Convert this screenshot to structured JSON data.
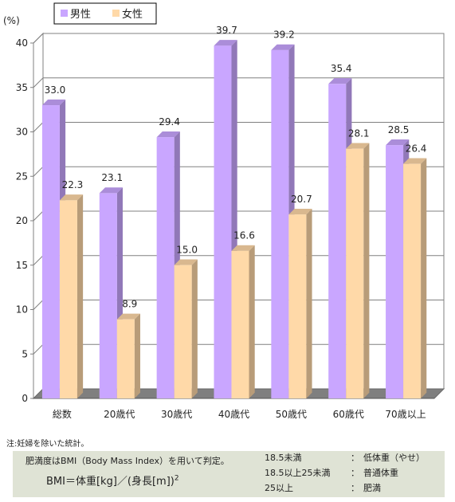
{
  "chart_data": {
    "type": "bar",
    "unit_label": "(%)",
    "categories": [
      "総数",
      "20歳代",
      "30歳代",
      "40歳代",
      "50歳代",
      "60歳代",
      "70歳以上"
    ],
    "series": [
      {
        "name": "男性",
        "color": "#c9a6ff",
        "values": [
          33.0,
          23.1,
          29.4,
          39.7,
          39.2,
          35.4,
          28.5
        ]
      },
      {
        "name": "女性",
        "color": "#ffd9a8",
        "values": [
          22.3,
          8.9,
          15.0,
          16.6,
          20.7,
          28.1,
          26.4
        ]
      }
    ],
    "value_labels": {
      "男性": [
        "33.0",
        "23.1",
        "29.4",
        "39.7",
        "39.2",
        "35.4",
        "28.5"
      ],
      "女性": [
        "22.3",
        "8.9",
        "15.0",
        "16.6",
        "20.7",
        "28.1",
        "26.4"
      ]
    },
    "ylim": [
      0,
      40
    ],
    "yticks": [
      0,
      5,
      10,
      15,
      20,
      25,
      30,
      35,
      40
    ],
    "grid": true,
    "style": "3d",
    "legend_position": "top-left"
  },
  "note": "注:妊婦を除いた統計。",
  "bmi": {
    "description": "肥満度はBMI（Body Mass Index）を用いて判定。",
    "formula": "BMI＝体重[kg]／(身長[m])",
    "exponent": "2",
    "classes": [
      {
        "range": "18.5未満",
        "colon": "：",
        "name": "低体重（やせ）"
      },
      {
        "range": "18.5以上25未満",
        "colon": "：",
        "name": "普通体重"
      },
      {
        "range": "25以上",
        "colon": "：",
        "name": "肥満"
      }
    ]
  }
}
